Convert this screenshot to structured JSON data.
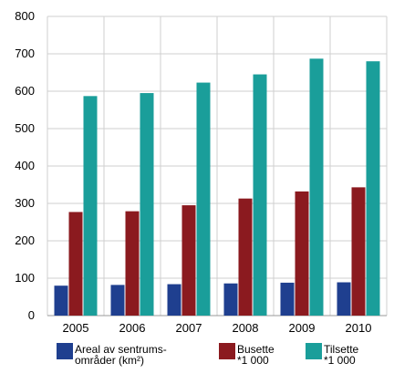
{
  "chart_data": {
    "type": "bar",
    "title": "",
    "xlabel": "",
    "ylabel": "",
    "categories": [
      "2005",
      "2006",
      "2007",
      "2008",
      "2009",
      "2010"
    ],
    "ylim": [
      0,
      800
    ],
    "yticks": [
      "0",
      "100",
      "200",
      "300",
      "400",
      "500",
      "600",
      "700",
      "800"
    ],
    "grid": true,
    "legend_position": "bottom",
    "series": [
      {
        "name": "Areal av sentrums-områder (km²)",
        "legend_lines": [
          "Areal av sentrums-",
          "områder (km²)"
        ],
        "color": "#1f3f8f",
        "values": [
          80,
          82,
          84,
          86,
          88,
          89
        ]
      },
      {
        "name": "Busette *1 000",
        "legend_lines": [
          "Busette",
          "*1 000"
        ],
        "color": "#8b1a1f",
        "values": [
          277,
          279,
          295,
          313,
          332,
          343
        ]
      },
      {
        "name": "Tilsette *1 000",
        "legend_lines": [
          "Tilsette",
          "*1 000"
        ],
        "color": "#1a9e9a",
        "values": [
          587,
          595,
          623,
          645,
          687,
          680
        ]
      }
    ]
  }
}
